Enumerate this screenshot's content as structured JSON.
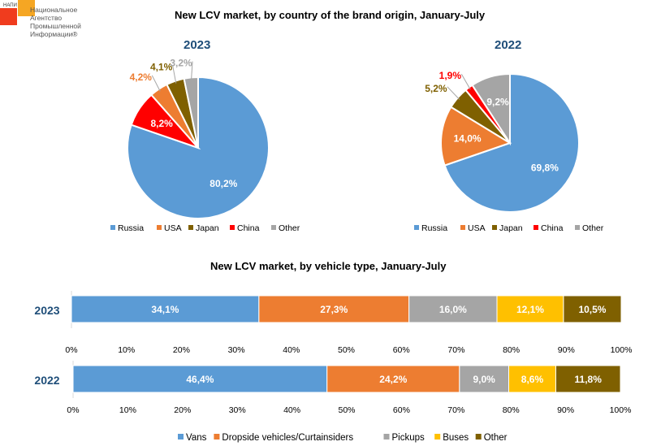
{
  "logo": {
    "abbr": "НАПИ",
    "lines": [
      "Национальное",
      "Агентство",
      "Промышленной",
      "Информации®"
    ]
  },
  "chart_data": [
    {
      "type": "pie",
      "title": "New LCV market, by country of the brand origin, January-July",
      "subtitle": "2023",
      "legend": [
        "Russia",
        "USA",
        "Japan",
        "China",
        "Other"
      ],
      "slices": [
        {
          "name": "Russia",
          "value": 80.2,
          "label": "80,2%"
        },
        {
          "name": "China",
          "value": 8.2,
          "label": "8,2%"
        },
        {
          "name": "USA",
          "value": 4.2,
          "label": "4,2%"
        },
        {
          "name": "Japan",
          "value": 4.1,
          "label": "4,1%"
        },
        {
          "name": "Other",
          "value": 3.2,
          "label": "3,2%"
        }
      ]
    },
    {
      "type": "pie",
      "subtitle": "2022",
      "legend": [
        "Russia",
        "USA",
        "Japan",
        "China",
        "Other"
      ],
      "slices": [
        {
          "name": "Russia",
          "value": 69.8,
          "label": "69,8%"
        },
        {
          "name": "USA",
          "value": 14.0,
          "label": "14,0%"
        },
        {
          "name": "Japan",
          "value": 5.2,
          "label": "5,2%"
        },
        {
          "name": "China",
          "value": 1.9,
          "label": "1,9%"
        },
        {
          "name": "Other",
          "value": 9.2,
          "label": "9,2%"
        }
      ]
    },
    {
      "type": "bar",
      "orientation": "horizontal-stacked",
      "title": "New LCV market, by vehicle type, January-July",
      "categories": [
        "2023",
        "2022"
      ],
      "legend": [
        "Vans",
        "Dropside vehicles/Curtainsiders",
        "Pickups",
        "Buses",
        "Other"
      ],
      "series": [
        {
          "name": "Vans",
          "values": [
            34.1,
            46.4
          ],
          "labels": [
            "34,1%",
            "46,4%"
          ]
        },
        {
          "name": "Dropside vehicles/Curtainsiders",
          "values": [
            27.3,
            24.2
          ],
          "labels": [
            "27,3%",
            "24,2%"
          ]
        },
        {
          "name": "Pickups",
          "values": [
            16.0,
            9.0
          ],
          "labels": [
            "16,0%",
            "9,0%"
          ]
        },
        {
          "name": "Buses",
          "values": [
            12.1,
            8.6
          ],
          "labels": [
            "12,1%",
            "8,6%"
          ]
        },
        {
          "name": "Other",
          "values": [
            10.5,
            11.8
          ],
          "labels": [
            "10,5%",
            "11,8%"
          ]
        }
      ],
      "xticks": [
        "0%",
        "10%",
        "20%",
        "30%",
        "40%",
        "50%",
        "60%",
        "70%",
        "80%",
        "90%",
        "100%"
      ],
      "xlim": [
        0,
        100
      ]
    }
  ],
  "colors": {
    "Russia": "#5b9bd5",
    "USA": "#ed7d31",
    "Japan": "#7f6000",
    "China": "#ff0000",
    "Other": "#a5a5a5",
    "Vans": "#5b9bd5",
    "Dropside vehicles/Curtainsiders": "#ed7d31",
    "Pickups": "#a5a5a5",
    "Buses": "#ffc000",
    "OtherBar": "#7f6000"
  }
}
